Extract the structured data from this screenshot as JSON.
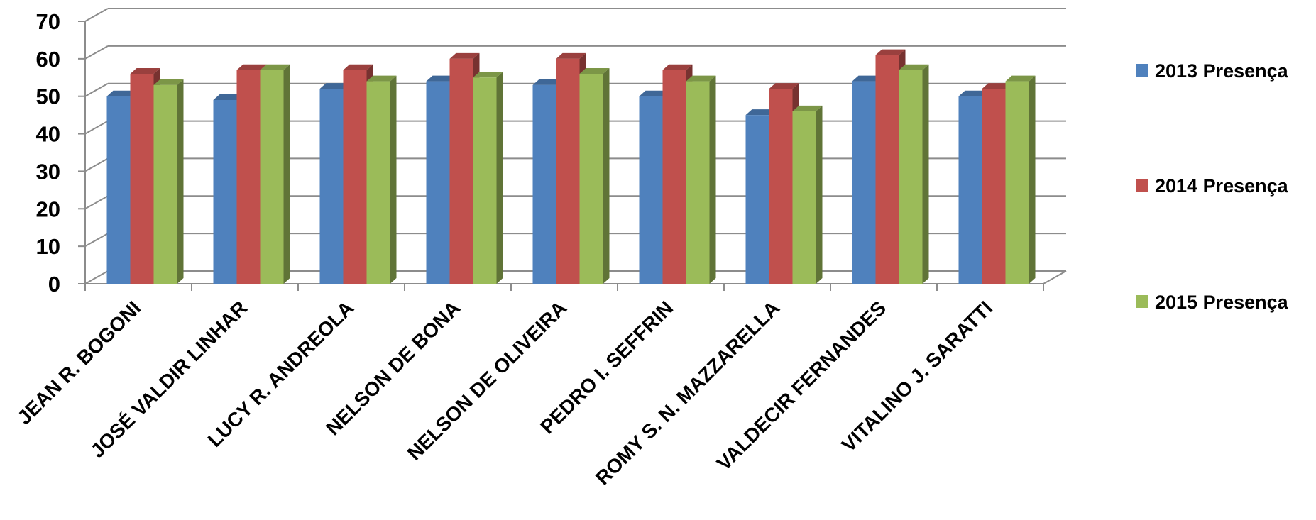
{
  "chart_data": {
    "type": "bar",
    "title": "",
    "xlabel": "",
    "ylabel": "",
    "ylim": [
      0,
      70
    ],
    "yticks": [
      0,
      10,
      20,
      30,
      40,
      50,
      60,
      70
    ],
    "grid": true,
    "legend_position": "right",
    "categories": [
      "JEAN R. BOGONI",
      "JOSÉ VALDIR LINHAR",
      "LUCY R. ANDREOLA",
      "NELSON DE BONA",
      "NELSON DE OLIVEIRA",
      "PEDRO I. SEFFRIN",
      "ROMY S. N. MAZZARELLA",
      "VALDECIR FERNANDES",
      "VITALINO J. SARATTI"
    ],
    "series": [
      {
        "name": "2013 Presença",
        "color": "#4F81BD",
        "values": [
          50,
          49,
          52,
          54,
          53,
          50,
          45,
          54,
          50
        ]
      },
      {
        "name": "2014 Presença",
        "color": "#C0504D",
        "values": [
          56,
          57,
          57,
          60,
          60,
          57,
          52,
          61,
          52
        ]
      },
      {
        "name": "2015 Presença",
        "color": "#9BBB59",
        "values": [
          53,
          57,
          54,
          55,
          56,
          54,
          46,
          57,
          54
        ]
      }
    ]
  }
}
